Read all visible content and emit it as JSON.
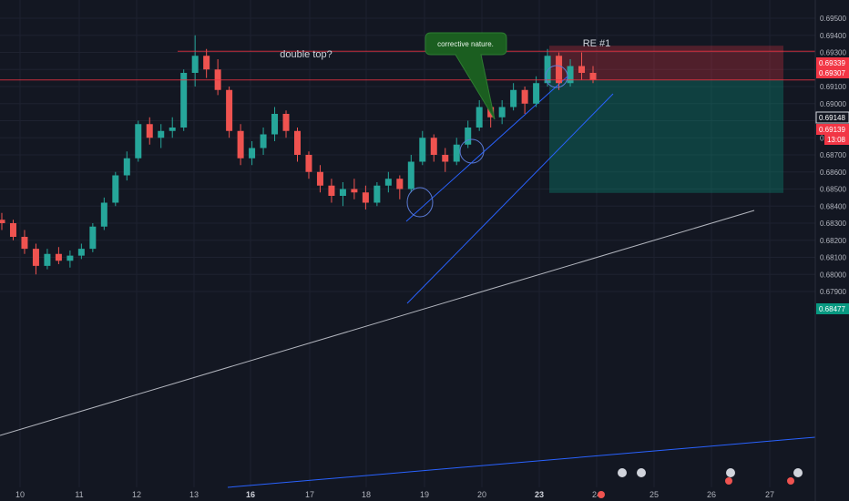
{
  "chart_data": {
    "type": "candlestick",
    "symbol_pair_hint": "",
    "yaxis": {
      "ticks": [
        "0.69500",
        "0.69400",
        "0.69300",
        "0.69200",
        "0.69100",
        "0.69000",
        "0.68900",
        "0.68800",
        "0.68700",
        "0.68600",
        "0.68500",
        "0.68400",
        "0.68300",
        "0.68200",
        "0.68100",
        "0.68000",
        "0.67900"
      ],
      "ylim": [
        0.6788,
        0.6958
      ]
    },
    "xaxis": {
      "ticks": [
        {
          "label": "10",
          "bold": false
        },
        {
          "label": "11",
          "bold": false
        },
        {
          "label": "12",
          "bold": false
        },
        {
          "label": "13",
          "bold": false
        },
        {
          "label": "16",
          "bold": true
        },
        {
          "label": "17",
          "bold": false
        },
        {
          "label": "18",
          "bold": false
        },
        {
          "label": "19",
          "bold": false
        },
        {
          "label": "20",
          "bold": false
        },
        {
          "label": "23",
          "bold": true
        },
        {
          "label": "24",
          "bold": false
        },
        {
          "label": "25",
          "bold": false
        },
        {
          "label": "26",
          "bold": false
        },
        {
          "label": "27",
          "bold": false
        }
      ]
    },
    "price_labels": [
      {
        "text": "0.69339",
        "value": 0.69339,
        "color": "#f23645"
      },
      {
        "text": "0.69307",
        "value": 0.69307,
        "color": "#f23645"
      },
      {
        "text": "0.69148",
        "value": 0.69148,
        "color": "#ffffff"
      },
      {
        "text": "0.69139",
        "value": 0.69139,
        "color": "#f23645"
      },
      {
        "text": "13:08",
        "value": null,
        "color": "#f23645"
      },
      {
        "text": "0.68477",
        "value": 0.68477,
        "color": "#089981"
      }
    ],
    "annotations": [
      {
        "text": "double top?"
      },
      {
        "text": "RE #1"
      },
      {
        "text": "corrective nature."
      }
    ],
    "position": {
      "type": "short",
      "entry": 0.69139,
      "stop": 0.69339,
      "target": 0.68477
    },
    "ohlc": [
      [
        0.6832,
        0.6836,
        0.6826,
        0.683
      ],
      [
        0.683,
        0.6832,
        0.682,
        0.6822
      ],
      [
        0.6822,
        0.6826,
        0.6812,
        0.6815
      ],
      [
        0.6815,
        0.6818,
        0.68,
        0.6805
      ],
      [
        0.6805,
        0.6815,
        0.6803,
        0.6812
      ],
      [
        0.6812,
        0.6816,
        0.6806,
        0.6808
      ],
      [
        0.6808,
        0.6814,
        0.6804,
        0.6811
      ],
      [
        0.6811,
        0.6818,
        0.6809,
        0.6815
      ],
      [
        0.6815,
        0.683,
        0.6813,
        0.6828
      ],
      [
        0.6828,
        0.6845,
        0.6826,
        0.6842
      ],
      [
        0.6842,
        0.686,
        0.684,
        0.6858
      ],
      [
        0.6858,
        0.6872,
        0.6855,
        0.6868
      ],
      [
        0.6868,
        0.689,
        0.6866,
        0.6888
      ],
      [
        0.6888,
        0.6892,
        0.6876,
        0.688
      ],
      [
        0.688,
        0.6888,
        0.6874,
        0.6884
      ],
      [
        0.6884,
        0.6892,
        0.688,
        0.6886
      ],
      [
        0.6886,
        0.692,
        0.6884,
        0.6918
      ],
      [
        0.6918,
        0.694,
        0.691,
        0.6928
      ],
      [
        0.6928,
        0.6932,
        0.6915,
        0.692
      ],
      [
        0.692,
        0.6926,
        0.6905,
        0.6908
      ],
      [
        0.6908,
        0.691,
        0.688,
        0.6884
      ],
      [
        0.6884,
        0.6888,
        0.6864,
        0.6868
      ],
      [
        0.6868,
        0.6878,
        0.6864,
        0.6874
      ],
      [
        0.6874,
        0.6886,
        0.687,
        0.6882
      ],
      [
        0.6882,
        0.6898,
        0.6878,
        0.6894
      ],
      [
        0.6894,
        0.6896,
        0.688,
        0.6884
      ],
      [
        0.6884,
        0.6886,
        0.6866,
        0.687
      ],
      [
        0.687,
        0.6872,
        0.6856,
        0.686
      ],
      [
        0.686,
        0.6864,
        0.6848,
        0.6852
      ],
      [
        0.6852,
        0.6856,
        0.6842,
        0.6846
      ],
      [
        0.6846,
        0.6854,
        0.684,
        0.685
      ],
      [
        0.685,
        0.6856,
        0.6844,
        0.6848
      ],
      [
        0.6848,
        0.6852,
        0.6838,
        0.6842
      ],
      [
        0.6842,
        0.6854,
        0.684,
        0.6852
      ],
      [
        0.6852,
        0.686,
        0.6848,
        0.6856
      ],
      [
        0.6856,
        0.6858,
        0.6844,
        0.685
      ],
      [
        0.685,
        0.687,
        0.6848,
        0.6866
      ],
      [
        0.6866,
        0.6884,
        0.6864,
        0.688
      ],
      [
        0.688,
        0.6882,
        0.6866,
        0.687
      ],
      [
        0.687,
        0.6874,
        0.686,
        0.6866
      ],
      [
        0.6866,
        0.688,
        0.6864,
        0.6876
      ],
      [
        0.6876,
        0.689,
        0.6874,
        0.6886
      ],
      [
        0.6886,
        0.6902,
        0.6884,
        0.6898
      ],
      [
        0.6898,
        0.69,
        0.6886,
        0.6892
      ],
      [
        0.6892,
        0.6902,
        0.6888,
        0.6898
      ],
      [
        0.6898,
        0.6912,
        0.6896,
        0.6908
      ],
      [
        0.6908,
        0.691,
        0.6894,
        0.69
      ],
      [
        0.69,
        0.6916,
        0.6898,
        0.6912
      ],
      [
        0.6912,
        0.6932,
        0.691,
        0.6928
      ],
      [
        0.6928,
        0.693,
        0.6908,
        0.6912
      ],
      [
        0.6912,
        0.6926,
        0.691,
        0.6922
      ],
      [
        0.6922,
        0.693,
        0.6914,
        0.6918
      ],
      [
        0.6918,
        0.6922,
        0.6912,
        0.6914
      ]
    ]
  }
}
